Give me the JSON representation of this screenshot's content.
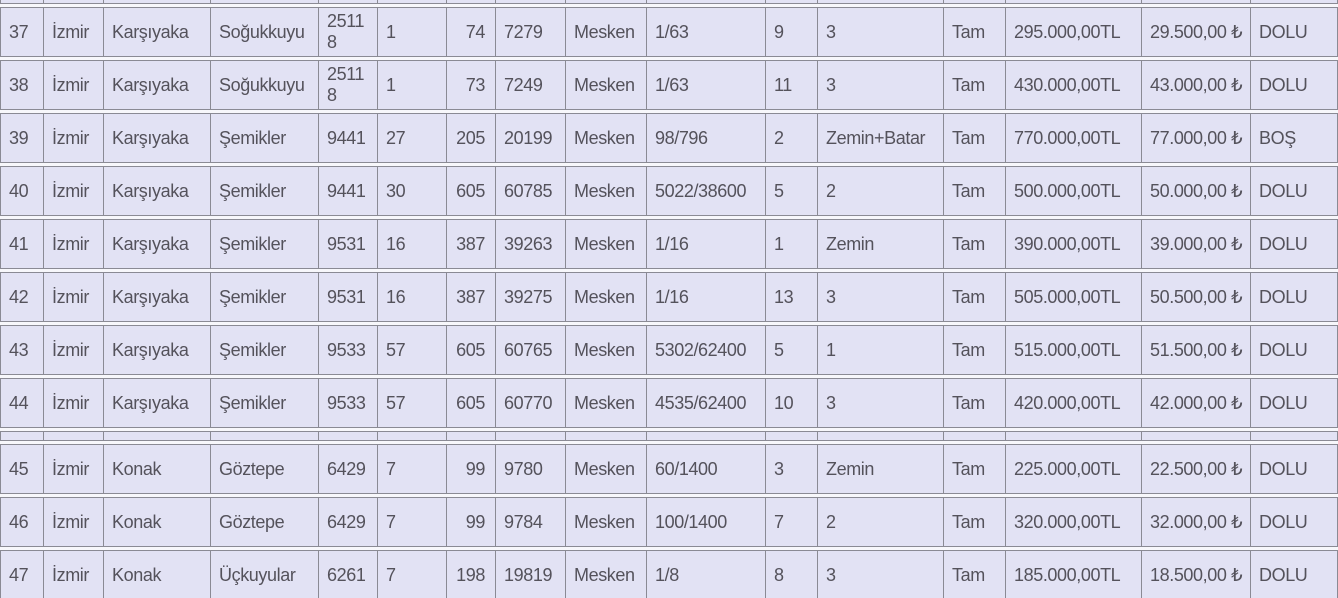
{
  "colors": {
    "cell_background": "#e2e2f4",
    "row_gap_background": "#f7f7fb",
    "border": "#8a8a94",
    "text": "#54525b"
  },
  "table": {
    "columns_count": 16,
    "right_aligned_column_index": 6,
    "status_values_visible": [
      "DOLU",
      "BOŞ"
    ],
    "rows": [
      {
        "type": "clipped"
      },
      {
        "type": "data",
        "cells": [
          "37",
          "İzmir",
          "Karşıyaka",
          "Soğukkuyu",
          "25118",
          "1",
          "74",
          "7279",
          "Mesken",
          "1/63",
          "9",
          "3",
          "Tam",
          "295.000,00TL",
          "29.500,00 ₺",
          "DOLU"
        ]
      },
      {
        "type": "data",
        "cells": [
          "38",
          "İzmir",
          "Karşıyaka",
          "Soğukkuyu",
          "25118",
          "1",
          "73",
          "7249",
          "Mesken",
          "1/63",
          "11",
          "3",
          "Tam",
          "430.000,00TL",
          "43.000,00 ₺",
          "DOLU"
        ]
      },
      {
        "type": "data",
        "cells": [
          "39",
          "İzmir",
          "Karşıyaka",
          "Şemikler",
          "9441",
          "27",
          "205",
          "20199",
          "Mesken",
          "98/796",
          "2",
          "Zemin+Batar",
          "Tam",
          "770.000,00TL",
          "77.000,00 ₺",
          "BOŞ"
        ]
      },
      {
        "type": "data",
        "cells": [
          "40",
          "İzmir",
          "Karşıyaka",
          "Şemikler",
          "9441",
          "30",
          "605",
          "60785",
          "Mesken",
          "5022/38600",
          "5",
          "2",
          "Tam",
          "500.000,00TL",
          "50.000,00 ₺",
          "DOLU"
        ]
      },
      {
        "type": "data",
        "cells": [
          "41",
          "İzmir",
          "Karşıyaka",
          "Şemikler",
          "9531",
          "16",
          "387",
          "39263",
          "Mesken",
          "1/16",
          "1",
          "Zemin",
          "Tam",
          "390.000,00TL",
          "39.000,00 ₺",
          "DOLU"
        ]
      },
      {
        "type": "data",
        "cells": [
          "42",
          "İzmir",
          "Karşıyaka",
          "Şemikler",
          "9531",
          "16",
          "387",
          "39275",
          "Mesken",
          "1/16",
          "13",
          "3",
          "Tam",
          "505.000,00TL",
          "50.500,00 ₺",
          "DOLU"
        ]
      },
      {
        "type": "data",
        "cells": [
          "43",
          "İzmir",
          "Karşıyaka",
          "Şemikler",
          "9533",
          "57",
          "605",
          "60765",
          "Mesken",
          "5302/62400",
          "5",
          "1",
          "Tam",
          "515.000,00TL",
          "51.500,00 ₺",
          "DOLU"
        ]
      },
      {
        "type": "data",
        "cells": [
          "44",
          "İzmir",
          "Karşıyaka",
          "Şemikler",
          "9533",
          "57",
          "605",
          "60770",
          "Mesken",
          "4535/62400",
          "10",
          "3",
          "Tam",
          "420.000,00TL",
          "42.000,00 ₺",
          "DOLU"
        ]
      },
      {
        "type": "separator"
      },
      {
        "type": "data",
        "cells": [
          "45",
          "İzmir",
          "Konak",
          "Göztepe",
          "6429",
          "7",
          "99",
          "9780",
          "Mesken",
          "60/1400",
          "3",
          "Zemin",
          "Tam",
          "225.000,00TL",
          "22.500,00 ₺",
          "DOLU"
        ]
      },
      {
        "type": "data",
        "cells": [
          "46",
          "İzmir",
          "Konak",
          "Göztepe",
          "6429",
          "7",
          "99",
          "9784",
          "Mesken",
          "100/1400",
          "7",
          "2",
          "Tam",
          "320.000,00TL",
          "32.000,00 ₺",
          "DOLU"
        ]
      },
      {
        "type": "data",
        "cells": [
          "47",
          "İzmir",
          "Konak",
          "Üçkuyular",
          "6261",
          "7",
          "198",
          "19819",
          "Mesken",
          "1/8",
          "8",
          "3",
          "Tam",
          "185.000,00TL",
          "18.500,00 ₺",
          "DOLU"
        ]
      }
    ]
  }
}
